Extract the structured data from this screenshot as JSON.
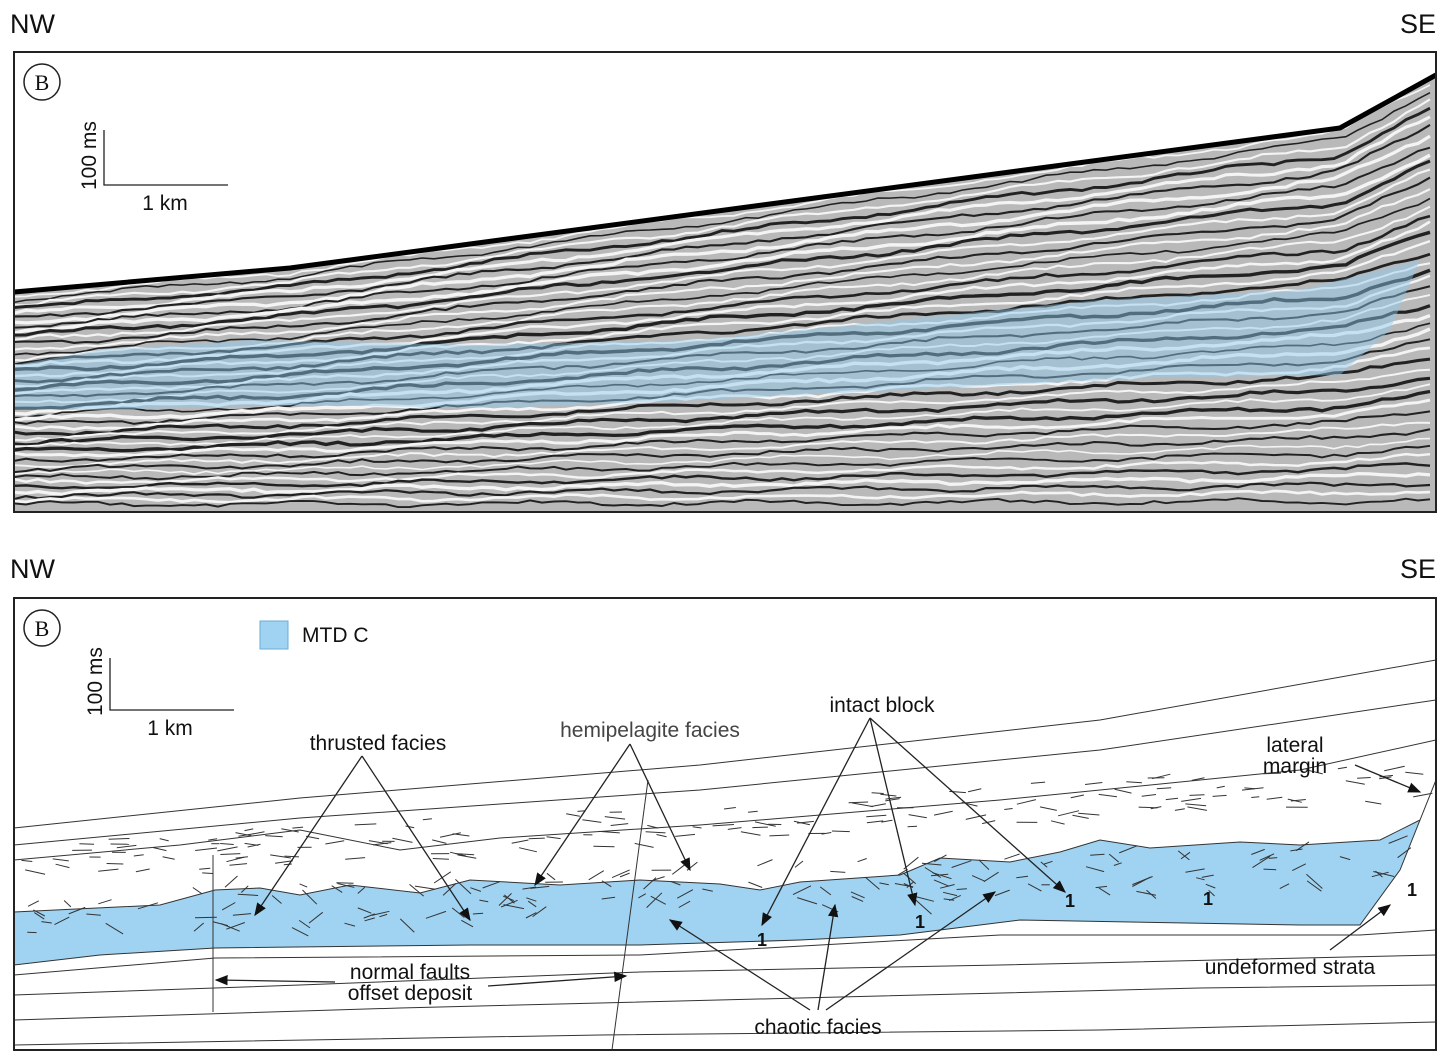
{
  "top_panel": {
    "left_direction": "NW",
    "right_direction": "SE",
    "panel_label": "B",
    "scale_vertical": "100 ms",
    "scale_horizontal": "1 km"
  },
  "bottom_panel": {
    "left_direction": "NW",
    "right_direction": "SE",
    "panel_label": "B",
    "scale_vertical": "100 ms",
    "scale_horizontal": "1 km",
    "legend": "MTD C",
    "annotations": {
      "thrusted": "thrusted facies",
      "hemipelagite": "hemipelagite facies",
      "intact_block": "intact block",
      "lateral_margin": [
        "lateral",
        "margin"
      ],
      "undeformed": "undeformed strata",
      "normal_faults": [
        "normal faults",
        "offset deposit"
      ],
      "chaotic": "chaotic facies",
      "block_marker": "1"
    }
  }
}
